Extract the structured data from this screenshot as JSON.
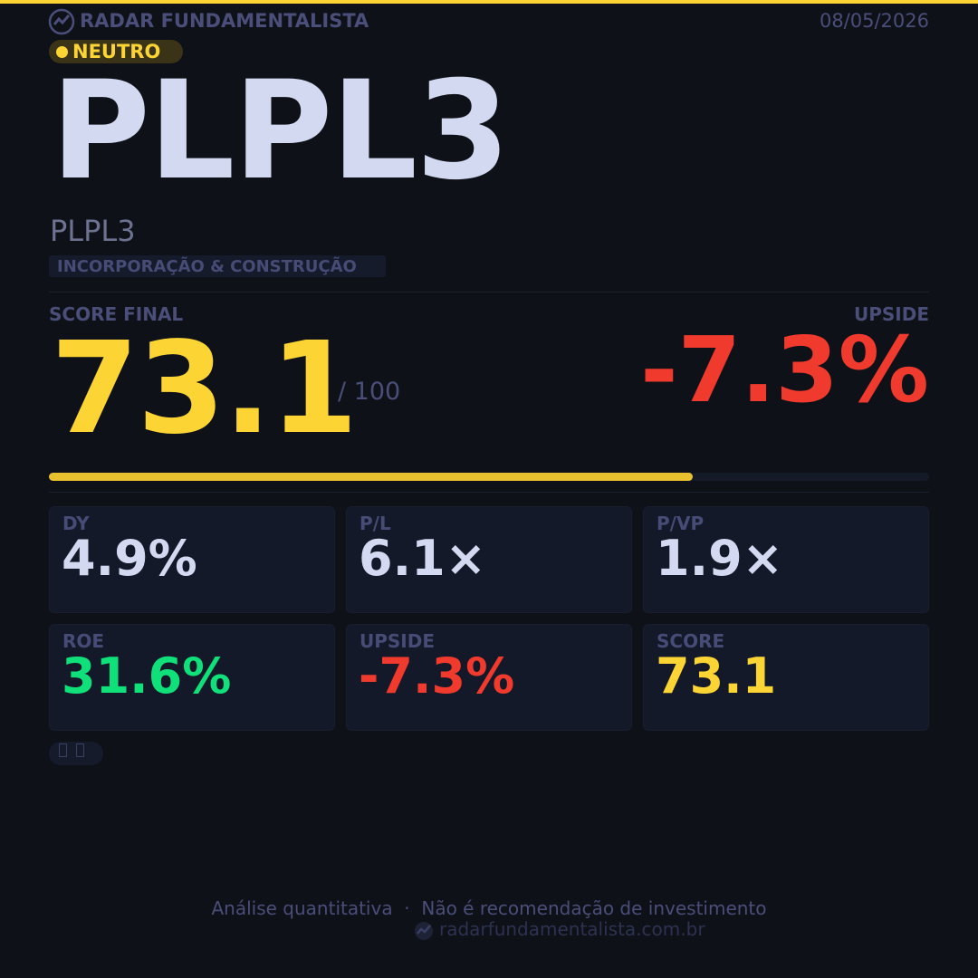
{
  "header": {
    "brand": "RADAR FUNDAMENTALISTA",
    "date": "08/05/2026"
  },
  "badge": "NEUTRO",
  "ticker": "PLPL3",
  "company": "PLPL3",
  "sector": "INCORPORAÇÃO & CONSTRUÇÃO",
  "score_label": "SCORE FINAL",
  "score": 73.1,
  "score_max": {
    "value": 100,
    "label": "/ 100"
  },
  "upside_label": "UPSIDE",
  "upside": "-7.3%",
  "metrics": [
    {
      "label": "DY",
      "value": "4.9%"
    },
    {
      "label": "P/L",
      "value": "6.1×"
    },
    {
      "label": "P/VP",
      "value": "1.9×"
    },
    {
      "label": "ROE",
      "value": "31.6%"
    },
    {
      "label": "UPSIDE",
      "value": "-7.3%"
    },
    {
      "label": "SCORE",
      "value": "73.1"
    }
  ],
  "footer": {
    "disclaimer": "Análise quantitativa  ·  Não é recomendação de investimento",
    "url": "radarfundamentalista.com.br"
  }
}
